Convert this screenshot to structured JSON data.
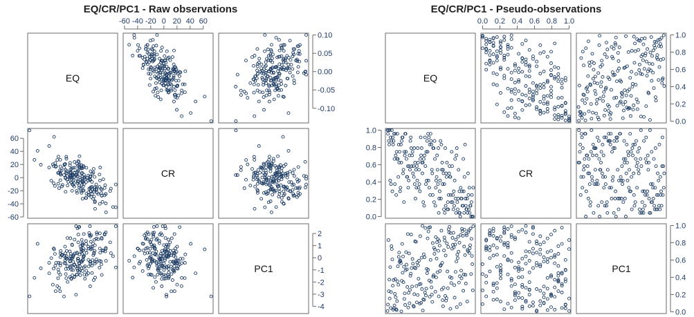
{
  "colors": {
    "text": "#222222",
    "tick": "#1f3a64",
    "point": "#1c3b63",
    "frame": "#6a6a6a"
  },
  "chart_data": [
    {
      "type": "scatter",
      "title": "EQ/CR/PC1 - Raw observations",
      "matrix": "pairs",
      "variables": [
        "EQ",
        "CR",
        "PC1"
      ],
      "ranges": {
        "EQ": [
          -0.14,
          0.105
        ],
        "CR": [
          -62,
          75
        ],
        "PC1": [
          -4.6,
          2.8
        ]
      },
      "ticks": {
        "EQ": [
          -0.1,
          -0.05,
          0.0,
          0.05,
          0.1
        ],
        "CR": [
          -60,
          -40,
          -20,
          0,
          20,
          40,
          60
        ],
        "PC1": [
          -4,
          -3,
          -2,
          -1,
          0,
          1,
          2
        ]
      },
      "tick_labels": {
        "EQ_bottom": [
          "-0.10",
          "-0.05",
          "0.00",
          "0.05",
          "0.10"
        ],
        "EQ_right": [
          "-0.10",
          "-0.05",
          "0.00",
          "0.05",
          "0.10"
        ],
        "CR_top": [
          "-60",
          "-40",
          "-20",
          "0",
          "20",
          "40",
          "60"
        ],
        "CR_left": [
          "-60",
          "-40",
          "-20",
          "0",
          "20",
          "40",
          "60"
        ],
        "PC1_right": [
          "-4",
          "-3",
          "-2",
          "-1",
          "0",
          "1",
          "2"
        ],
        "PC1_bottom": [
          "-4",
          "-3",
          "-2",
          "-1",
          "0",
          "1",
          "2"
        ]
      },
      "n_observations": 200,
      "grid": false
    },
    {
      "type": "scatter",
      "title": "EQ/CR/PC1 - Pseudo-observations",
      "matrix": "pairs",
      "variables": [
        "EQ",
        "CR",
        "PC1"
      ],
      "ranges": {
        "EQ": [
          -0.02,
          1.02
        ],
        "CR": [
          -0.02,
          1.02
        ],
        "PC1": [
          -0.02,
          1.02
        ]
      },
      "ticks": {
        "EQ": [
          0.0,
          0.2,
          0.4,
          0.6,
          0.8,
          1.0
        ],
        "CR": [
          0.0,
          0.2,
          0.4,
          0.6,
          0.8,
          1.0
        ],
        "PC1": [
          0.0,
          0.2,
          0.4,
          0.6,
          0.8,
          1.0
        ]
      },
      "tick_labels": {
        "u": [
          "0.0",
          "0.2",
          "0.4",
          "0.6",
          "0.8",
          "1.0"
        ]
      },
      "n_observations": 200,
      "grid": false
    }
  ]
}
